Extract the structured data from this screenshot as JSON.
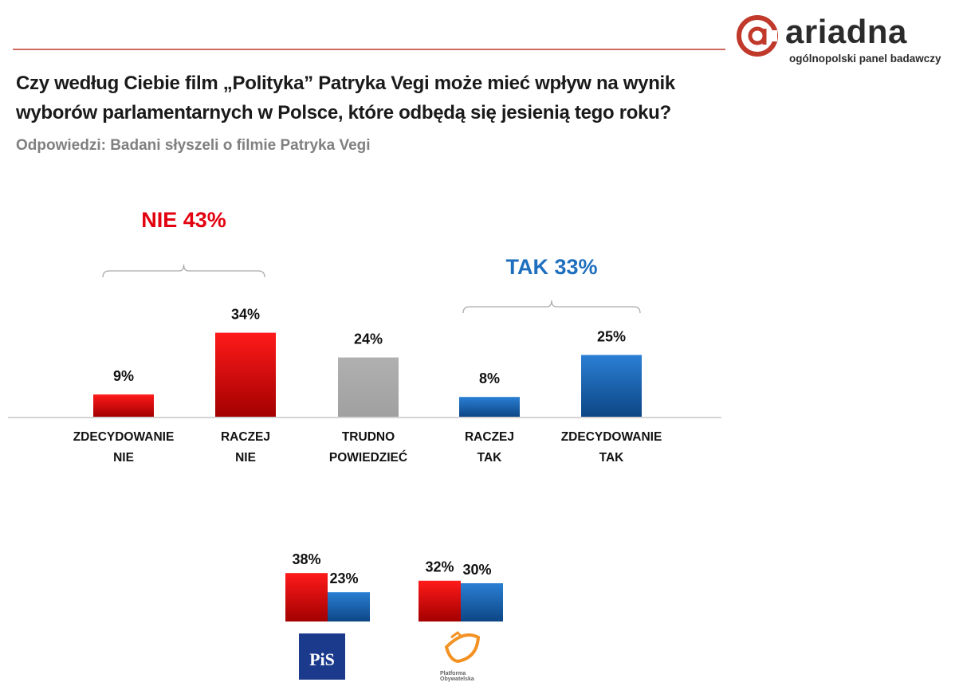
{
  "logo": {
    "name": "ariadna",
    "tagline": "ogólnopolski panel badawczy"
  },
  "chart_data": [
    {
      "type": "bar",
      "title": "Czy według Ciebie film „Polityka” Patryka Vegi może mieć wpływ na wynik\nwyborów parlamentarnych w Polsce, które odbędą się jesienią tego roku?",
      "subtitle": "Odpowiedzi: Badani słyszeli o filmie Patryka Vegi",
      "categories": [
        "ZDECYDOWANIE\nNIE",
        "RACZEJ\nNIE",
        "TRUDNO\nPOWIEDZIEĆ",
        "RACZEJ\nTAK",
        "ZDECYDOWANIE\nTAK"
      ],
      "values": [
        9,
        34,
        24,
        8,
        25
      ],
      "value_labels": [
        "9%",
        "34%",
        "24%",
        "8%",
        "25%"
      ],
      "colors": [
        "#e3000f",
        "#e3000f",
        "#a6a6a6",
        "#1f6fbf",
        "#1f6fbf"
      ],
      "annotations": [
        {
          "text": "NIE 43%",
          "color": "#e3000f"
        },
        {
          "text": "TAK 33%",
          "color": "#1f6fbf"
        }
      ]
    },
    {
      "type": "grouped-bar",
      "categories": [
        "PiS",
        "Platforma\nObywatelska"
      ],
      "series": [
        {
          "color": "#e3000f",
          "values": [
            38,
            32
          ],
          "value_labels": [
            "38%",
            "32%"
          ]
        },
        {
          "color": "#1f6fbf",
          "values": [
            23,
            30
          ],
          "value_labels": [
            "23%",
            "30%"
          ]
        }
      ]
    }
  ]
}
